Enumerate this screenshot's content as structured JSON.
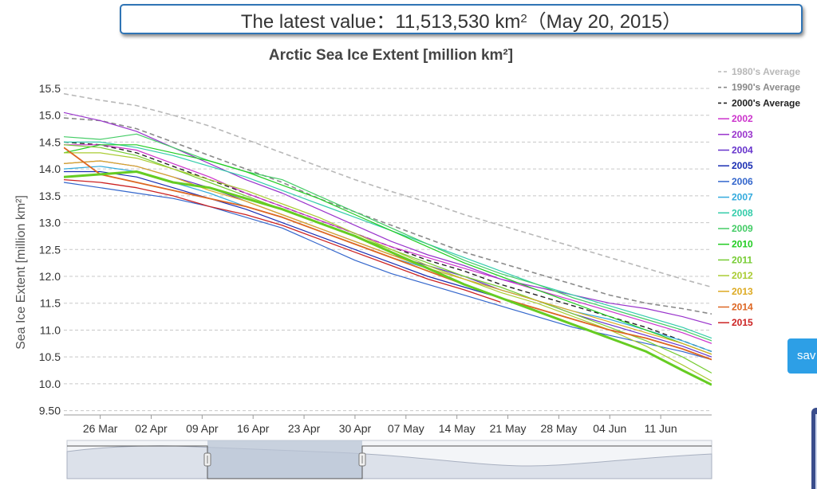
{
  "latest": {
    "prefix": "The latest value：11,513,530 km",
    "exponent": "2",
    "suffix": "（May 20, 2015）"
  },
  "save_label": "sav",
  "chart_data": {
    "type": "line",
    "title": "Arctic Sea Ice Extent [million km²]",
    "ylabel": "Sea Ice Extent [million km²]",
    "xlabel": "",
    "ylim": [
      9.42,
      15.9
    ],
    "xlim": [
      -5,
      84
    ],
    "x_unit": "days since 26 Mar",
    "yticks": [
      "9.50",
      "10.0",
      "10.5",
      "11.0",
      "11.5",
      "12.0",
      "12.5",
      "13.0",
      "13.5",
      "14.0",
      "14.5",
      "15.0",
      "15.5"
    ],
    "xtick_labels": [
      "26 Mar",
      "02 Apr",
      "09 Apr",
      "16 Apr",
      "23 Apr",
      "30 Apr",
      "07 May",
      "14 May",
      "21 May",
      "28 May",
      "04 Jun",
      "11 Jun"
    ],
    "grid": true,
    "legend_position": "right",
    "series": [
      {
        "name": "1980's Average",
        "color": "#b8b8b8",
        "dash": true,
        "width": 1.6,
        "x": [
          -5,
          0,
          5,
          10,
          15,
          20,
          25,
          30,
          35,
          40,
          45,
          50,
          55,
          60,
          65,
          70,
          75,
          80,
          84
        ],
        "y": [
          15.4,
          15.28,
          15.18,
          15.0,
          14.8,
          14.55,
          14.3,
          14.05,
          13.8,
          13.58,
          13.38,
          13.15,
          12.95,
          12.75,
          12.55,
          12.35,
          12.15,
          11.95,
          11.8
        ]
      },
      {
        "name": "1990's Average",
        "color": "#8a8a8a",
        "dash": true,
        "width": 1.6,
        "x": [
          -5,
          0,
          5,
          10,
          15,
          20,
          25,
          30,
          35,
          40,
          45,
          50,
          55,
          60,
          65,
          70,
          75,
          80,
          84
        ],
        "y": [
          14.95,
          14.9,
          14.75,
          14.5,
          14.25,
          14.0,
          13.75,
          13.45,
          13.2,
          12.95,
          12.7,
          12.45,
          12.25,
          12.05,
          11.85,
          11.65,
          11.5,
          11.4,
          11.3
        ]
      },
      {
        "name": "2000's Average",
        "color": "#222222",
        "dash": true,
        "width": 1.4,
        "x": [
          -5,
          0,
          5,
          10,
          15,
          20,
          25,
          30,
          35,
          40,
          45,
          50,
          55,
          60,
          65,
          70,
          75,
          80,
          84
        ],
        "y": [
          14.5,
          14.45,
          14.3,
          14.05,
          13.8,
          13.55,
          13.3,
          13.05,
          12.8,
          12.55,
          12.3,
          12.1,
          11.85,
          11.65,
          11.45,
          11.25,
          11.05,
          10.8,
          10.6
        ]
      },
      {
        "name": "2002",
        "color": "#cc33cc",
        "dash": false,
        "width": 1.2,
        "x": [
          -5,
          0,
          5,
          10,
          15,
          20,
          25,
          30,
          35,
          40,
          45,
          50,
          55,
          60,
          65,
          70,
          75,
          80,
          84
        ],
        "y": [
          14.45,
          14.45,
          14.35,
          14.1,
          13.85,
          13.55,
          13.3,
          13.05,
          12.8,
          12.55,
          12.35,
          12.15,
          11.95,
          11.75,
          11.55,
          11.35,
          11.15,
          10.95,
          10.75
        ]
      },
      {
        "name": "2003",
        "color": "#9933cc",
        "dash": false,
        "width": 1.2,
        "x": [
          -5,
          0,
          5,
          10,
          15,
          20,
          25,
          30,
          35,
          40,
          45,
          50,
          55,
          60,
          65,
          70,
          75,
          80,
          84
        ],
        "y": [
          15.05,
          14.9,
          14.7,
          14.4,
          14.1,
          13.8,
          13.55,
          13.25,
          12.95,
          12.65,
          12.4,
          12.2,
          11.95,
          11.8,
          11.65,
          11.5,
          11.4,
          11.25,
          11.1
        ]
      },
      {
        "name": "2004",
        "color": "#6633cc",
        "dash": false,
        "width": 1.2,
        "x": [
          -5,
          0,
          5,
          10,
          15,
          20,
          25,
          30,
          35,
          40,
          45,
          50,
          55,
          60,
          65,
          70,
          75,
          80,
          84
        ],
        "y": [
          14.1,
          14.15,
          14.05,
          13.85,
          13.65,
          13.4,
          13.15,
          12.9,
          12.65,
          12.4,
          12.2,
          12.0,
          11.75,
          11.55,
          11.3,
          11.1,
          10.9,
          10.7,
          10.5
        ]
      },
      {
        "name": "2005",
        "color": "#1a2eb3",
        "dash": false,
        "width": 1.2,
        "x": [
          -5,
          0,
          5,
          10,
          15,
          20,
          25,
          30,
          35,
          40,
          45,
          50,
          55,
          60,
          65,
          70,
          75,
          80,
          84
        ],
        "y": [
          13.95,
          13.95,
          13.85,
          13.65,
          13.45,
          13.25,
          13.0,
          12.75,
          12.5,
          12.25,
          12.0,
          11.8,
          11.6,
          11.4,
          11.2,
          11.0,
          10.85,
          10.65,
          10.45
        ]
      },
      {
        "name": "2006",
        "color": "#3366cc",
        "dash": false,
        "width": 1.2,
        "x": [
          -5,
          0,
          5,
          10,
          15,
          20,
          25,
          30,
          35,
          40,
          45,
          50,
          55,
          60,
          65,
          70,
          75,
          80,
          84
        ],
        "y": [
          13.75,
          13.65,
          13.55,
          13.45,
          13.3,
          13.1,
          12.9,
          12.6,
          12.3,
          12.05,
          11.85,
          11.65,
          11.45,
          11.25,
          11.05,
          10.9,
          10.75,
          10.6,
          10.45
        ]
      },
      {
        "name": "2007",
        "color": "#33aadd",
        "dash": false,
        "width": 1.2,
        "x": [
          -5,
          0,
          5,
          10,
          15,
          20,
          25,
          30,
          35,
          40,
          45,
          50,
          55,
          60,
          65,
          70,
          75,
          80,
          84
        ],
        "y": [
          14.0,
          14.05,
          13.95,
          13.75,
          13.55,
          13.3,
          13.1,
          12.85,
          12.6,
          12.35,
          12.15,
          11.95,
          11.75,
          11.55,
          11.35,
          11.2,
          11.0,
          10.8,
          10.6
        ]
      },
      {
        "name": "2008",
        "color": "#33ccaa",
        "dash": false,
        "width": 1.2,
        "x": [
          -5,
          0,
          5,
          10,
          15,
          20,
          25,
          30,
          35,
          40,
          45,
          50,
          55,
          60,
          65,
          70,
          75,
          80,
          84
        ],
        "y": [
          14.5,
          14.5,
          14.4,
          14.25,
          14.05,
          13.85,
          13.6,
          13.35,
          13.1,
          12.85,
          12.6,
          12.35,
          12.1,
          11.85,
          11.65,
          11.45,
          11.25,
          11.05,
          10.85
        ]
      },
      {
        "name": "2009",
        "color": "#44cc66",
        "dash": false,
        "width": 1.2,
        "x": [
          -5,
          0,
          5,
          10,
          15,
          20,
          25,
          30,
          35,
          40,
          45,
          50,
          55,
          60,
          65,
          70,
          75,
          80,
          84
        ],
        "y": [
          14.6,
          14.55,
          14.65,
          14.4,
          14.15,
          13.95,
          13.8,
          13.5,
          13.2,
          12.9,
          12.6,
          12.3,
          12.05,
          11.85,
          11.6,
          11.4,
          11.2,
          11.0,
          10.8
        ]
      },
      {
        "name": "2010",
        "color": "#22cc22",
        "dash": false,
        "width": 1.2,
        "x": [
          -5,
          0,
          5,
          10,
          15,
          20,
          25,
          30,
          35,
          40,
          45,
          50,
          55,
          60,
          65,
          70,
          75,
          80,
          84
        ],
        "y": [
          14.3,
          14.45,
          14.45,
          14.3,
          14.15,
          13.95,
          13.7,
          13.45,
          13.15,
          12.85,
          12.55,
          12.25,
          12.0,
          11.75,
          11.5,
          11.25,
          11.0,
          10.75,
          10.55
        ]
      },
      {
        "name": "2011",
        "color": "#77cc33",
        "dash": false,
        "width": 1.2,
        "x": [
          -5,
          0,
          5,
          10,
          15,
          20,
          25,
          30,
          35,
          40,
          45,
          50,
          55,
          60,
          65,
          70,
          75,
          80,
          84
        ],
        "y": [
          14.45,
          14.4,
          14.25,
          14.0,
          13.75,
          13.5,
          13.25,
          13.0,
          12.75,
          12.5,
          12.25,
          12.0,
          11.8,
          11.55,
          11.3,
          11.05,
          10.8,
          10.5,
          10.2
        ]
      },
      {
        "name": "2012",
        "color": "#aacc33",
        "dash": false,
        "width": 1.2,
        "x": [
          -5,
          0,
          5,
          10,
          15,
          20,
          25,
          30,
          35,
          40,
          45,
          50,
          55,
          60,
          65,
          70,
          75,
          80,
          84
        ],
        "y": [
          14.3,
          14.3,
          14.2,
          14.0,
          13.8,
          13.6,
          13.35,
          13.1,
          12.8,
          12.5,
          12.2,
          11.95,
          11.7,
          11.5,
          11.25,
          11.0,
          10.7,
          10.35,
          10.05
        ]
      },
      {
        "name": "2013",
        "color": "#ddaa22",
        "dash": false,
        "width": 1.2,
        "x": [
          -5,
          0,
          5,
          10,
          15,
          20,
          25,
          30,
          35,
          40,
          45,
          50,
          55,
          60,
          65,
          70,
          75,
          80,
          84
        ],
        "y": [
          14.1,
          14.15,
          14.05,
          13.85,
          13.6,
          13.4,
          13.15,
          12.9,
          12.65,
          12.4,
          12.15,
          11.95,
          11.75,
          11.55,
          11.35,
          11.15,
          10.95,
          10.75,
          10.55
        ]
      },
      {
        "name": "2014",
        "color": "#dd6622",
        "dash": false,
        "width": 1.8,
        "x": [
          -5,
          0,
          5,
          10,
          15,
          20,
          25,
          30,
          35,
          40,
          45,
          50,
          55,
          60,
          65,
          70,
          75,
          80,
          84
        ],
        "y": [
          14.4,
          13.9,
          13.75,
          13.6,
          13.45,
          13.3,
          13.1,
          12.85,
          12.6,
          12.35,
          12.1,
          11.85,
          11.6,
          11.4,
          11.2,
          11.0,
          10.85,
          10.65,
          10.45
        ]
      },
      {
        "name": "2015",
        "color": "#cc2222",
        "dash": false,
        "width": 1.3,
        "x": [
          -5,
          0,
          5,
          10,
          15,
          20,
          25,
          30,
          35,
          40,
          45,
          50,
          55
        ],
        "y": [
          13.8,
          13.75,
          13.65,
          13.5,
          13.3,
          13.15,
          12.95,
          12.7,
          12.45,
          12.2,
          11.95,
          11.75,
          11.52
        ]
      },
      {
        "name": "",
        "color": "#66cc22",
        "dash": false,
        "width": 3.0,
        "x": [
          -5,
          0,
          5,
          10,
          15,
          20,
          25,
          30,
          35,
          40,
          45,
          50,
          55,
          60,
          65,
          70,
          75,
          80,
          84
        ],
        "y": [
          13.85,
          13.9,
          13.95,
          13.75,
          13.65,
          13.45,
          13.25,
          13.0,
          12.75,
          12.45,
          12.15,
          11.85,
          11.6,
          11.35,
          11.1,
          10.85,
          10.6,
          10.25,
          9.98
        ]
      }
    ]
  }
}
